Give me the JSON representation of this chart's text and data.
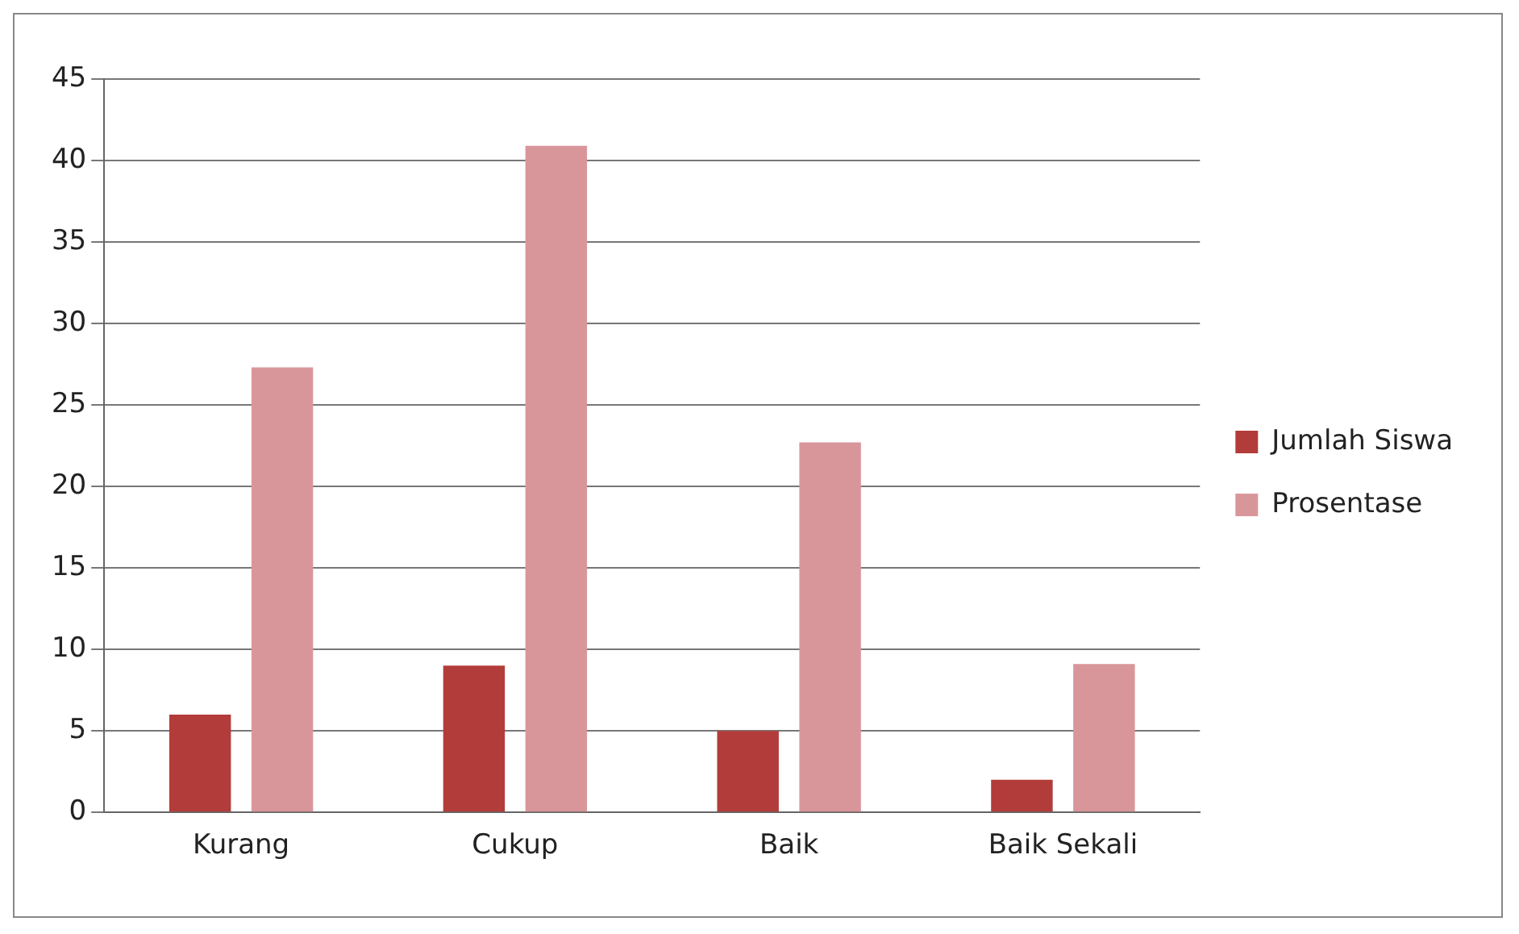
{
  "chart_data": {
    "type": "bar",
    "categories": [
      "Kurang",
      "Cukup",
      "Baik",
      "Baik Sekali"
    ],
    "series": [
      {
        "name": "Jumlah Siswa",
        "color": "#b23c3a",
        "values": [
          6,
          9,
          5,
          2
        ]
      },
      {
        "name": "Prosentase",
        "color": "#d9969a",
        "values": [
          27.3,
          40.9,
          22.7,
          9.1
        ]
      }
    ],
    "ylim": [
      0,
      45
    ],
    "yticks": [
      0,
      5,
      10,
      15,
      20,
      25,
      30,
      35,
      40,
      45
    ],
    "grid": "y",
    "legend": "right"
  }
}
